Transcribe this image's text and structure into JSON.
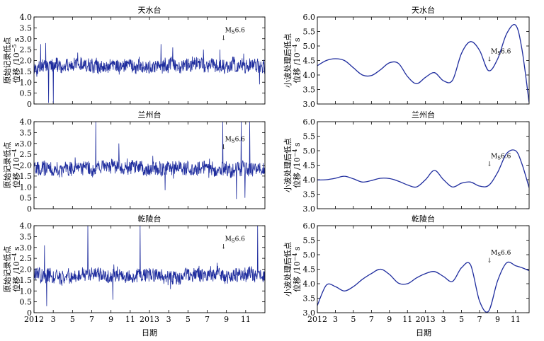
{
  "figure": {
    "xlabel": "日期",
    "annotation_label": "M",
    "annotation_sub": "S",
    "annotation_value": "6.6",
    "annotation_arrow": "↓",
    "time_tick_labels": [
      "2012",
      "3",
      "5",
      "7",
      "9",
      "11",
      "2013",
      "3",
      "5",
      "7",
      "9",
      "11"
    ]
  },
  "chart_data": [
    {
      "id": "raw-tianshui",
      "type": "line",
      "title": "天水台",
      "ylabel_line1": "原始记录低点",
      "ylabel_line2_prefix": "位移 /10",
      "ylabel_exp": "−5",
      "ylabel_suffix": " s",
      "ylim": [
        0,
        4.0
      ],
      "yticks": [
        "0",
        "0.5",
        "1.0",
        "1.5",
        "2.0",
        "2.5",
        "3.0",
        "3.5",
        "4.0"
      ],
      "xlim_months": [
        0,
        24
      ],
      "color": "#1f2d9e",
      "base_level": 1.75,
      "noise_amplitude": 0.45,
      "annotation_month": 19.7,
      "annotation_y": 3.3,
      "spikes": [
        {
          "month": 0.7,
          "value": 2.75
        },
        {
          "month": 1.2,
          "value": 2.8
        },
        {
          "month": 1.5,
          "value": 0.05
        },
        {
          "month": 2.0,
          "value": 0.05
        },
        {
          "month": 13.2,
          "value": 2.75
        },
        {
          "month": 14.4,
          "value": 2.6
        },
        {
          "month": 17.6,
          "value": 2.5
        },
        {
          "month": 19.3,
          "value": 2.5
        },
        {
          "month": 23.4,
          "value": 0.9
        }
      ]
    },
    {
      "id": "raw-lanzhou",
      "type": "line",
      "title": "兰州台",
      "ylabel_line1": "原始记录低点",
      "ylabel_line2_prefix": "位移 /10",
      "ylabel_exp": "−4",
      "ylabel_suffix": " s",
      "ylim": [
        0,
        4.0
      ],
      "yticks": [
        "0",
        "0.5",
        "1.0",
        "1.5",
        "2.0",
        "2.5",
        "3.0",
        "3.5",
        "4.0"
      ],
      "xlim_months": [
        0,
        24
      ],
      "color": "#1f2d9e",
      "base_level": 1.85,
      "noise_amplitude": 0.45,
      "annotation_month": 19.7,
      "annotation_y": 3.1,
      "spikes": [
        {
          "month": 6.4,
          "value": 4.0
        },
        {
          "month": 19.6,
          "value": 4.0
        },
        {
          "month": 21.5,
          "value": 4.0
        },
        {
          "month": 22.4,
          "value": 4.0
        },
        {
          "month": 21.0,
          "value": 0.45
        },
        {
          "month": 8.8,
          "value": 3.0
        },
        {
          "month": 13.6,
          "value": 0.85
        },
        {
          "month": 21.9,
          "value": 0.5
        }
      ]
    },
    {
      "id": "raw-qianling",
      "type": "line",
      "title": "乾陵台",
      "ylabel_line1": "原始记录低点",
      "ylabel_line2_prefix": "位移 /10",
      "ylabel_exp": "−4",
      "ylabel_suffix": " s",
      "ylim": [
        0,
        4.0
      ],
      "yticks": [
        "0",
        "0.5",
        "1.0",
        "1.5",
        "2.0",
        "2.5",
        "3.0",
        "3.5",
        "4.0"
      ],
      "xlim_months": [
        0,
        24
      ],
      "color": "#1f2d9e",
      "base_level": 1.7,
      "noise_amplitude": 0.45,
      "annotation_month": 19.7,
      "annotation_y": 3.3,
      "spikes": [
        {
          "month": 1.1,
          "value": 3.1
        },
        {
          "month": 1.3,
          "value": 0.3
        },
        {
          "month": 5.6,
          "value": 4.0
        },
        {
          "month": 11.0,
          "value": 4.0
        },
        {
          "month": 23.2,
          "value": 4.0
        },
        {
          "month": 8.2,
          "value": 0.6
        }
      ]
    },
    {
      "id": "wavelet-tianshui",
      "type": "line",
      "title": "天水台",
      "ylabel_line1": "小波处理后低点",
      "ylabel_line2_prefix": "位移 /10",
      "ylabel_exp": "−4",
      "ylabel_suffix": " s",
      "ylim": [
        3.0,
        6.0
      ],
      "yticks": [
        "3.0",
        "3.5",
        "4.0",
        "4.5",
        "5.0",
        "5.5",
        "6.0"
      ],
      "xlim_months": [
        0,
        23.5
      ],
      "color": "#1f2d9e",
      "annotation_month": 19.1,
      "annotation_y": 4.75,
      "x": [
        0,
        1,
        2,
        3,
        4,
        5,
        6,
        7,
        8,
        9,
        10,
        11,
        12,
        13,
        14,
        15,
        16,
        17,
        18,
        19,
        20,
        21,
        22,
        22.7,
        23.5
      ],
      "y": [
        4.32,
        4.5,
        4.56,
        4.5,
        4.25,
        4.0,
        3.98,
        4.18,
        4.42,
        4.4,
        3.95,
        3.7,
        3.92,
        4.08,
        3.8,
        3.82,
        4.75,
        5.15,
        4.85,
        4.15,
        4.55,
        5.42,
        5.72,
        4.9,
        3.05
      ]
    },
    {
      "id": "wavelet-lanzhou",
      "type": "line",
      "title": "兰州台",
      "ylabel_line1": "小波处理后低点",
      "ylabel_line2_prefix": "位移 /10",
      "ylabel_exp": "−4",
      "ylabel_suffix": " s",
      "ylim": [
        3.0,
        6.0
      ],
      "yticks": [
        "3.0",
        "3.5",
        "4.0",
        "4.5",
        "5.0",
        "5.5",
        "6.0"
      ],
      "xlim_months": [
        0,
        23.5
      ],
      "color": "#1f2d9e",
      "annotation_month": 19.1,
      "annotation_y": 4.75,
      "x": [
        0,
        1,
        2,
        3,
        4,
        5,
        6,
        7,
        8,
        9,
        10,
        11,
        12,
        13,
        14,
        15,
        16,
        17,
        18,
        19,
        20,
        21,
        22,
        22.7,
        23.5
      ],
      "y": [
        3.99,
        4.0,
        4.05,
        4.12,
        4.03,
        3.92,
        3.97,
        4.05,
        4.04,
        3.95,
        3.82,
        3.75,
        4.0,
        4.32,
        4.0,
        3.75,
        3.88,
        3.92,
        3.78,
        3.8,
        4.25,
        4.9,
        5.0,
        4.55,
        3.72
      ]
    },
    {
      "id": "wavelet-qianling",
      "type": "line",
      "title": "乾陵台",
      "ylabel_line1": "小波处理后低点",
      "ylabel_line2_prefix": "位移 /10",
      "ylabel_exp": "−4",
      "ylabel_suffix": " s",
      "ylim": [
        3.0,
        6.0
      ],
      "yticks": [
        "3.0",
        "3.5",
        "4.0",
        "4.5",
        "5.0",
        "5.5",
        "6.0"
      ],
      "xlim_months": [
        0,
        23.5
      ],
      "color": "#1f2d9e",
      "annotation_month": 19.1,
      "annotation_y": 5.0,
      "x": [
        0,
        1,
        2,
        3,
        4,
        5,
        6,
        7,
        8,
        9,
        10,
        11,
        12,
        13,
        14,
        15,
        16,
        17,
        18,
        19,
        20,
        21,
        22,
        22.7,
        23.5
      ],
      "y": [
        3.25,
        3.95,
        3.9,
        3.75,
        3.9,
        4.15,
        4.35,
        4.5,
        4.32,
        4.02,
        4.0,
        4.2,
        4.35,
        4.42,
        4.25,
        4.08,
        4.55,
        4.65,
        3.4,
        3.05,
        4.1,
        4.72,
        4.62,
        4.55,
        4.45
      ]
    }
  ]
}
